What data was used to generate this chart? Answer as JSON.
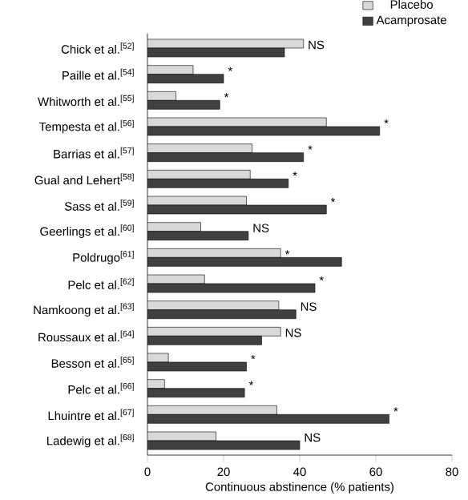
{
  "chart_data": {
    "type": "bar",
    "orientation": "horizontal",
    "xlabel": "Continuous abstinence (% patients)",
    "categories": [
      "Chick et al.$^{[52]}$",
      "Paille et al.$^{[54]}$",
      "Whitworth et al.$^{[55]}$",
      "Tempesta et al.$^{[56]}$",
      "Barrias et al.$^{[57]}$",
      "Gual and Lehert$^{[58]}$",
      "Sass et al.$^{[59]}$",
      "Geerlings et al.$^{[60]}$",
      "Poldrugo$^{[61]}$",
      "Pelc et al.$^{[62]}$",
      "Namkoong et al.$^{[63]}$",
      "Roussaux et al.$^{[64]}$",
      "Besson et al.$^{[65]}$",
      "Pelc et al.$^{[66]}$",
      "Lhuintre et al.$^{[67]}$",
      "Ladewig et al.$^{[68]}$"
    ],
    "series": [
      {
        "name": "Placebo",
        "color": "#d9d9d9",
        "values": [
          41,
          12,
          7.5,
          47,
          27.5,
          27,
          26,
          14,
          35,
          15,
          34.5,
          35,
          5.5,
          4.5,
          34,
          18
        ]
      },
      {
        "name": "Acamprosate",
        "color": "#404040",
        "values": [
          36,
          20,
          19,
          61,
          41,
          37,
          47,
          26.5,
          51,
          44,
          39,
          30,
          26,
          25.5,
          63.5,
          40
        ]
      }
    ],
    "xlim": [
      0,
      80
    ],
    "xticks": [
      0,
      20,
      40,
      60,
      80
    ],
    "legend": "top right",
    "annotations": [
      {
        "text": "NS",
        "x": 41,
        "y": "Chick et al.$^{[52]}$"
      },
      {
        "text": "*",
        "x": 20,
        "y": "Paille et al.$^{[54]}$"
      },
      {
        "text": "*",
        "x": 19,
        "y": "Whitworth et al.$^{[55]}$"
      },
      {
        "text": "*",
        "x": 61,
        "y": "Tempesta et al.$^{[56]}$"
      },
      {
        "text": "*",
        "x": 41,
        "y": "Barrias et al.$^{[57]}$"
      },
      {
        "text": "*",
        "x": 37,
        "y": "Gual and Lehert$^{[58]}$"
      },
      {
        "text": "*",
        "x": 47,
        "y": "Sass et al.$^{[59]}$"
      },
      {
        "text": "NS",
        "x": 26.5,
        "y": "Geerlings et al.$^{[60]}$"
      },
      {
        "text": "*",
        "x": 35,
        "y": "Poldrugo$^{[61]}$"
      },
      {
        "text": "*",
        "x": 44,
        "y": "Pelc et al.$^{[62]}$"
      },
      {
        "text": "NS",
        "x": 39,
        "y": "Namkoong et al.$^{[63]}$"
      },
      {
        "text": "NS",
        "x": 35,
        "y": "Roussaux et al.$^{[64]}$"
      },
      {
        "text": "*",
        "x": 26,
        "y": "Besson et al.$^{[65]}$"
      },
      {
        "text": "*",
        "x": 25.5,
        "y": "Pelc et al.$^{[66]}$"
      },
      {
        "text": "*",
        "x": 63.5,
        "y": "Lhuintre et al.$^{[67]}$"
      },
      {
        "text": "NS",
        "x": 40,
        "y": "Ladewig et al.$^{[68]}$"
      }
    ]
  }
}
